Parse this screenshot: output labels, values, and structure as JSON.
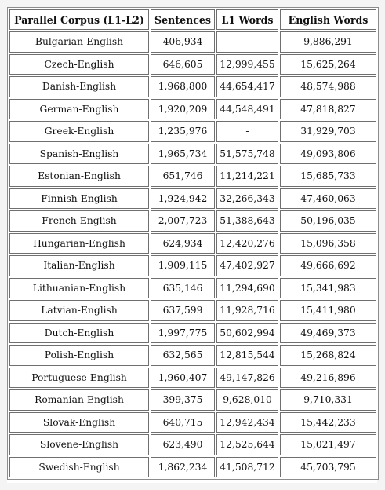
{
  "table": {
    "headers": [
      "Parallel Corpus (L1-L2)",
      "Sentences",
      "L1 Words",
      "English Words"
    ],
    "rows": [
      [
        "Bulgarian-English",
        "406,934",
        "-",
        "9,886,291"
      ],
      [
        "Czech-English",
        "646,605",
        "12,999,455",
        "15,625,264"
      ],
      [
        "Danish-English",
        "1,968,800",
        "44,654,417",
        "48,574,988"
      ],
      [
        "German-English",
        "1,920,209",
        "44,548,491",
        "47,818,827"
      ],
      [
        "Greek-English",
        "1,235,976",
        "-",
        "31,929,703"
      ],
      [
        "Spanish-English",
        "1,965,734",
        "51,575,748",
        "49,093,806"
      ],
      [
        "Estonian-English",
        "651,746",
        "11,214,221",
        "15,685,733"
      ],
      [
        "Finnish-English",
        "1,924,942",
        "32,266,343",
        "47,460,063"
      ],
      [
        "French-English",
        "2,007,723",
        "51,388,643",
        "50,196,035"
      ],
      [
        "Hungarian-English",
        "624,934",
        "12,420,276",
        "15,096,358"
      ],
      [
        "Italian-English",
        "1,909,115",
        "47,402,927",
        "49,666,692"
      ],
      [
        "Lithuanian-English",
        "635,146",
        "11,294,690",
        "15,341,983"
      ],
      [
        "Latvian-English",
        "637,599",
        "11,928,716",
        "15,411,980"
      ],
      [
        "Dutch-English",
        "1,997,775",
        "50,602,994",
        "49,469,373"
      ],
      [
        "Polish-English",
        "632,565",
        "12,815,544",
        "15,268,824"
      ],
      [
        "Portuguese-English",
        "1,960,407",
        "49,147,826",
        "49,216,896"
      ],
      [
        "Romanian-English",
        "399,375",
        "9,628,010",
        "9,710,331"
      ],
      [
        "Slovak-English",
        "640,715",
        "12,942,434",
        "15,442,233"
      ],
      [
        "Slovene-English",
        "623,490",
        "12,525,644",
        "15,021,497"
      ],
      [
        "Swedish-English",
        "1,862,234",
        "41,508,712",
        "45,703,795"
      ]
    ]
  }
}
